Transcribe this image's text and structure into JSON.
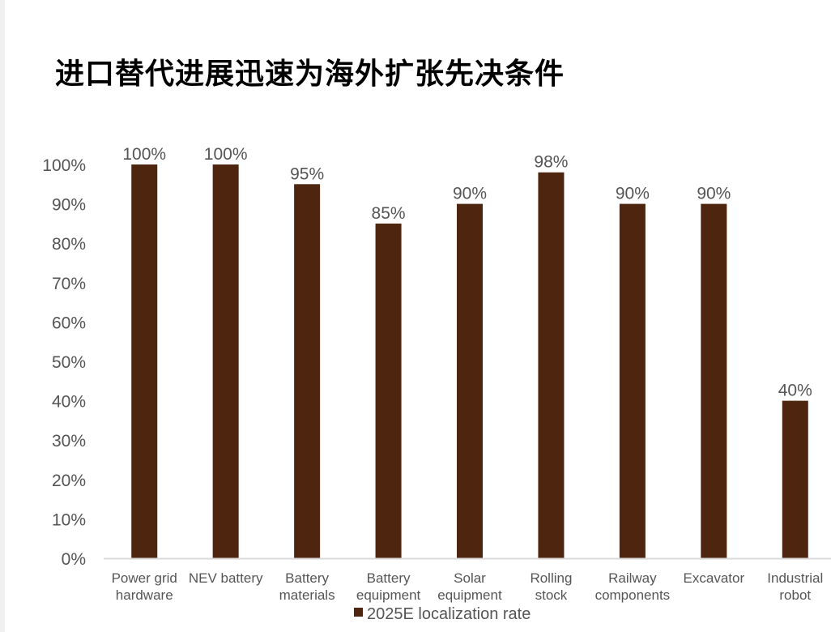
{
  "title": "进口替代进展迅速为海外扩张先决条件",
  "chart_data": {
    "type": "bar",
    "categories": [
      [
        "Power grid",
        "hardware"
      ],
      [
        "NEV battery"
      ],
      [
        "Battery",
        "materials"
      ],
      [
        "Battery",
        "equipment"
      ],
      [
        "Solar",
        "equipment"
      ],
      [
        "Rolling",
        "stock"
      ],
      [
        "Railway",
        "components"
      ],
      [
        "Excavator"
      ],
      [
        "Industrial",
        "robot"
      ]
    ],
    "series": [
      {
        "name": "2025E localization rate",
        "values": [
          100,
          100,
          95,
          85,
          90,
          98,
          90,
          90,
          40
        ],
        "data_labels": [
          "100%",
          "100%",
          "95%",
          "85%",
          "90%",
          "98%",
          "90%",
          "90%",
          "40%"
        ],
        "color": "#4e260f"
      }
    ],
    "y_ticks": [
      "0%",
      "10%",
      "20%",
      "30%",
      "40%",
      "50%",
      "60%",
      "70%",
      "80%",
      "90%",
      "100%"
    ],
    "ylim": [
      0,
      100
    ],
    "grid": false,
    "legend_position": "bottom-center",
    "axis_color": "#d9d9d9"
  }
}
